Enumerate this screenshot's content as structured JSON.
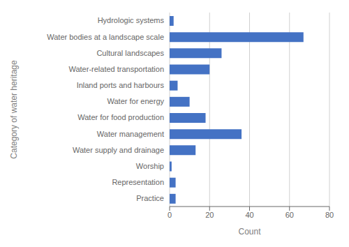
{
  "chart_data": {
    "type": "bar",
    "orientation": "horizontal",
    "categories": [
      "Hydrologic systems",
      "Water bodies at a landscape scale",
      "Cultural landscapes",
      "Water-related transportation",
      "Inland ports and harbours",
      "Water for energy",
      "Water for food production",
      "Water management",
      "Water supply and drainage",
      "Worship",
      "Representation",
      "Practice"
    ],
    "values": [
      2,
      67,
      26,
      20,
      4,
      10,
      18,
      36,
      13,
      1,
      3,
      3
    ],
    "color": "#4472C4",
    "xlabel": "Count",
    "ylabel": "Category of water heritage",
    "xlim": [
      0,
      80
    ],
    "xticks": [
      0,
      20,
      40,
      60,
      80
    ],
    "grid": true
  }
}
